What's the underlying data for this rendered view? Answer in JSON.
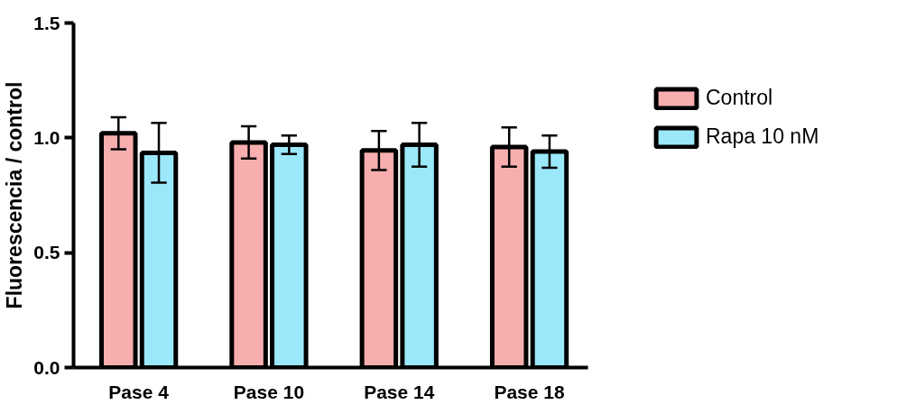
{
  "chart_data": {
    "type": "bar",
    "ylabel": "Fluorescencia / control",
    "categories": [
      "Pase 4",
      "Pase 10",
      "Pase 14",
      "Pase 18"
    ],
    "series": [
      {
        "name": "Control",
        "color": "#f8aeae",
        "values": [
          1.02,
          0.98,
          0.945,
          0.96
        ],
        "errors": [
          0.07,
          0.07,
          0.085,
          0.085
        ]
      },
      {
        "name": "Rapa 10 nM",
        "color": "#9be8fa",
        "values": [
          0.935,
          0.97,
          0.97,
          0.94
        ],
        "errors": [
          0.13,
          0.04,
          0.095,
          0.07
        ]
      }
    ],
    "ylim": [
      0,
      1.5
    ],
    "yticks": [
      {
        "value": 0,
        "label": "0.0"
      },
      {
        "value": 0.5,
        "label": "0.5"
      },
      {
        "value": 1.0,
        "label": "1.0"
      },
      {
        "value": 1.5,
        "label": "1.5"
      }
    ],
    "grid": false,
    "legend": "right"
  }
}
